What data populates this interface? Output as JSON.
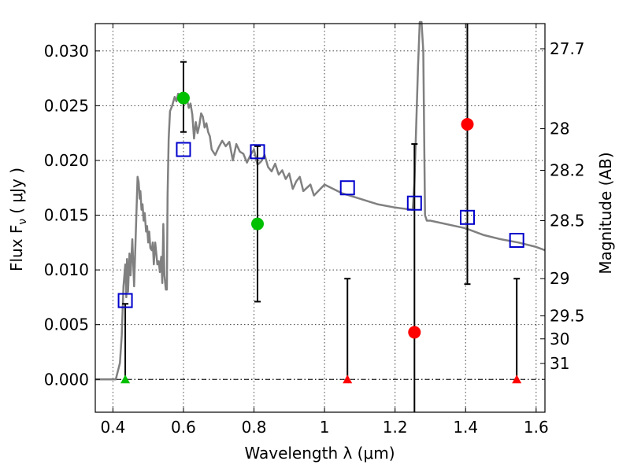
{
  "chart_data": {
    "type": "scatter",
    "xlabel": "Wavelength  λ (μm)",
    "ylabel": "Flux  F",
    "ylabel_sub": "ν",
    "ylabel_unit": "( μJy )",
    "y2label": "Magnitude (AB)",
    "xlim": [
      0.35,
      1.625
    ],
    "ylim": [
      -0.003,
      0.0325
    ],
    "grid": true,
    "x_ticks": [
      {
        "value": 0.4,
        "label": "0.4"
      },
      {
        "value": 0.6,
        "label": "0.6"
      },
      {
        "value": 0.8,
        "label": "0.8"
      },
      {
        "value": 1.0,
        "label": "1"
      },
      {
        "value": 1.2,
        "label": "1.2"
      },
      {
        "value": 1.4,
        "label": "1.4"
      },
      {
        "value": 1.6,
        "label": "1.6"
      }
    ],
    "y_ticks": [
      {
        "value": 0.0,
        "label": "0.000"
      },
      {
        "value": 0.005,
        "label": "0.005"
      },
      {
        "value": 0.01,
        "label": "0.010"
      },
      {
        "value": 0.015,
        "label": "0.015"
      },
      {
        "value": 0.02,
        "label": "0.020"
      },
      {
        "value": 0.025,
        "label": "0.025"
      },
      {
        "value": 0.03,
        "label": "0.030"
      }
    ],
    "y2_ticks": [
      {
        "flux": 0.0302,
        "label": "27.7"
      },
      {
        "flux": 0.0229,
        "label": "28"
      },
      {
        "flux": 0.0191,
        "label": "28.2"
      },
      {
        "flux": 0.0145,
        "label": "28.5"
      },
      {
        "flux": 0.0092,
        "label": "29"
      },
      {
        "flux": 0.0058,
        "label": "29.5"
      },
      {
        "flux": 0.0037,
        "label": "30"
      },
      {
        "flux": 0.00145,
        "label": "31"
      }
    ],
    "template_spectrum": {
      "color": "#808080",
      "x": [
        0.35,
        0.408,
        0.42,
        0.425,
        0.43,
        0.435,
        0.438,
        0.44,
        0.443,
        0.447,
        0.45,
        0.455,
        0.46,
        0.465,
        0.47,
        0.473,
        0.476,
        0.478,
        0.481,
        0.484,
        0.487,
        0.49,
        0.494,
        0.497,
        0.5,
        0.503,
        0.506,
        0.51,
        0.513,
        0.516,
        0.52,
        0.523,
        0.526,
        0.53,
        0.533,
        0.537,
        0.54,
        0.543,
        0.546,
        0.55,
        0.553,
        0.555,
        0.558,
        0.562,
        0.568,
        0.575,
        0.58,
        0.585,
        0.59,
        0.595,
        0.6,
        0.605,
        0.61,
        0.615,
        0.62,
        0.625,
        0.63,
        0.635,
        0.64,
        0.645,
        0.65,
        0.655,
        0.66,
        0.665,
        0.67,
        0.675,
        0.68,
        0.69,
        0.7,
        0.71,
        0.72,
        0.73,
        0.74,
        0.75,
        0.76,
        0.77,
        0.78,
        0.79,
        0.8,
        0.81,
        0.82,
        0.83,
        0.84,
        0.85,
        0.86,
        0.87,
        0.88,
        0.89,
        0.9,
        0.91,
        0.92,
        0.93,
        0.94,
        0.95,
        0.96,
        0.97,
        1.0,
        1.05,
        1.1,
        1.15,
        1.2,
        1.25,
        1.255,
        1.265,
        1.27,
        1.275,
        1.28,
        1.285,
        1.29,
        1.3,
        1.4,
        1.45,
        1.5,
        1.55,
        1.6,
        1.625
      ],
      "y": [
        0.0,
        0.0,
        0.0015,
        0.004,
        0.0085,
        0.0105,
        0.0075,
        0.011,
        0.008,
        0.0115,
        0.0095,
        0.0128,
        0.0085,
        0.0135,
        0.0185,
        0.018,
        0.0165,
        0.0172,
        0.0155,
        0.016,
        0.0145,
        0.0152,
        0.0135,
        0.014,
        0.0125,
        0.0135,
        0.012,
        0.0118,
        0.0125,
        0.0105,
        0.0125,
        0.0115,
        0.0105,
        0.0108,
        0.0098,
        0.0112,
        0.0088,
        0.0142,
        0.0095,
        0.0082,
        0.0082,
        0.0168,
        0.022,
        0.0245,
        0.025,
        0.0258,
        0.0254,
        0.0261,
        0.0258,
        0.026,
        0.0255,
        0.0252,
        0.0256,
        0.0248,
        0.0252,
        0.0242,
        0.022,
        0.0235,
        0.0225,
        0.0232,
        0.0243,
        0.024,
        0.023,
        0.0234,
        0.0226,
        0.0222,
        0.021,
        0.0205,
        0.0212,
        0.0218,
        0.0213,
        0.0217,
        0.02,
        0.0215,
        0.0208,
        0.0206,
        0.0198,
        0.0205,
        0.021,
        0.0196,
        0.0199,
        0.0205,
        0.0194,
        0.019,
        0.0197,
        0.0187,
        0.0191,
        0.0183,
        0.0188,
        0.0174,
        0.0181,
        0.0185,
        0.0172,
        0.0175,
        0.0178,
        0.0168,
        0.0178,
        0.017,
        0.0165,
        0.016,
        0.0157,
        0.0155,
        0.018,
        0.0285,
        0.0335,
        0.0335,
        0.03,
        0.015,
        0.0145,
        0.0145,
        0.0138,
        0.0132,
        0.0128,
        0.0125,
        0.0121,
        0.0118
      ]
    },
    "photometry": [
      {
        "x": 0.435,
        "model_flux": 0.0072,
        "measured_flux": 0.0,
        "err_low": 0.0,
        "err_high": 0.0069,
        "marker": "triangle",
        "color": "#00c000"
      },
      {
        "x": 0.6,
        "model_flux": 0.021,
        "measured_flux": 0.0257,
        "err_low": 0.0226,
        "err_high": 0.029,
        "marker": "circle",
        "color": "#00c000"
      },
      {
        "x": 0.81,
        "model_flux": 0.0208,
        "measured_flux": 0.0142,
        "err_low": 0.0071,
        "err_high": 0.0213,
        "marker": "circle",
        "color": "#00c000"
      },
      {
        "x": 1.065,
        "model_flux": 0.0175,
        "measured_flux": 0.0,
        "err_low": 0.0,
        "err_high": 0.0092,
        "marker": "triangle",
        "color": "#ff0000"
      },
      {
        "x": 1.255,
        "model_flux": 0.0161,
        "measured_flux": 0.0043,
        "err_low": -0.003,
        "err_high": 0.0215,
        "marker": "circle",
        "color": "#ff0000"
      },
      {
        "x": 1.405,
        "model_flux": 0.0148,
        "measured_flux": 0.0233,
        "err_low": 0.0087,
        "err_high": 0.0325,
        "marker": "circle",
        "color": "#ff0000"
      },
      {
        "x": 1.545,
        "model_flux": 0.0127,
        "measured_flux": 0.0,
        "err_low": 0.0,
        "err_high": 0.0092,
        "marker": "triangle",
        "color": "#ff0000"
      }
    ],
    "model_marker_color": "#0000cc"
  }
}
